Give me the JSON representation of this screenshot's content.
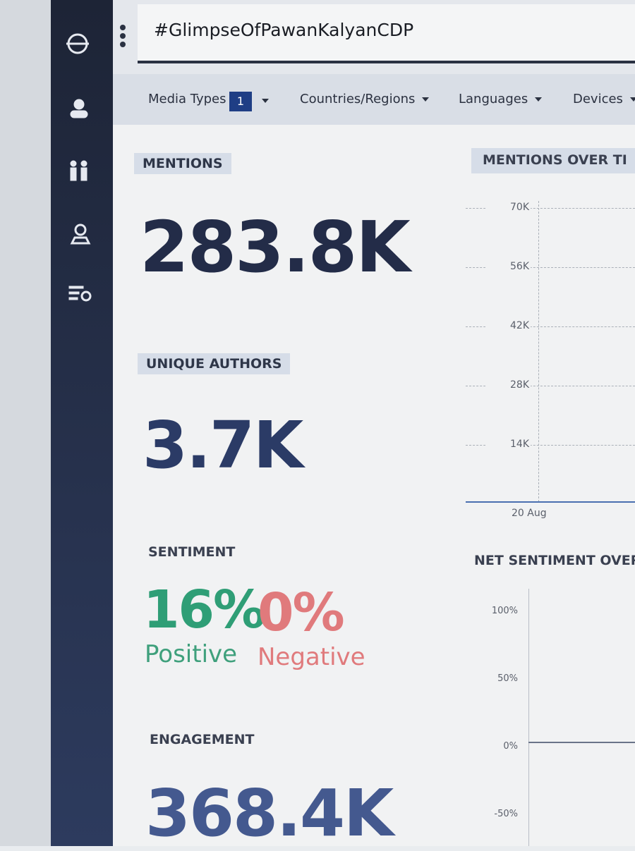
{
  "header": {
    "search": "#GlimpseOfPawanKalyanCDP"
  },
  "filters": {
    "media_types": "Media Types",
    "media_types_count": "1",
    "countries": "Countries/Regions",
    "languages": "Languages",
    "devices": "Devices"
  },
  "mentions": {
    "label": "MENTIONS",
    "value": "283.8K"
  },
  "unique_authors": {
    "label": "UNIQUE AUTHORS",
    "value": "3.7K"
  },
  "sentiment": {
    "label": "SENTIMENT",
    "positive_value": "16%",
    "positive_label": "Positive",
    "negative_value": "0%",
    "negative_label": "Negative"
  },
  "engagement": {
    "label": "ENGAGEMENT",
    "value": "368.4K"
  },
  "mentions_over_time": {
    "title": "MENTIONS OVER TI",
    "yticks": [
      "70K",
      "56K",
      "42K",
      "28K",
      "14K"
    ],
    "xlabel": "20 Aug"
  },
  "net_sentiment": {
    "title": "NET SENTIMENT OVER",
    "yticks": [
      "100%",
      "50%",
      "0%",
      "-50%"
    ]
  }
}
